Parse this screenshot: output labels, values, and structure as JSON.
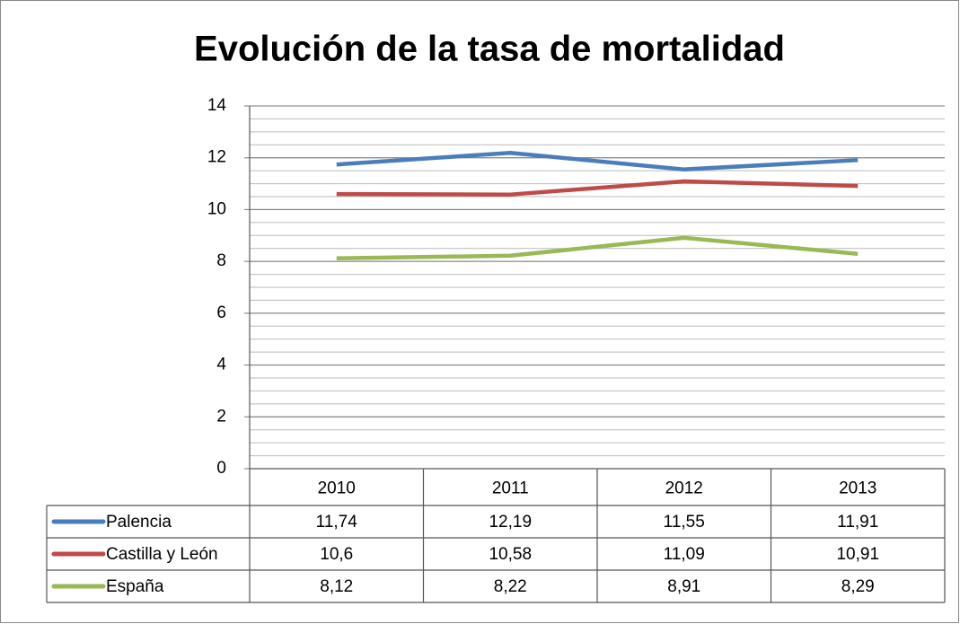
{
  "chart_data": {
    "type": "line",
    "title": "Evolución de la tasa de mortalidad",
    "categories": [
      "2010",
      "2011",
      "2012",
      "2013"
    ],
    "series": [
      {
        "name": "Palencia",
        "color": "#4a7ebb",
        "values": [
          11.74,
          12.19,
          11.55,
          11.91
        ],
        "value_labels": [
          "11,74",
          "12,19",
          "11,55",
          "11,91"
        ]
      },
      {
        "name": "Castilla y León",
        "color": "#be4b48",
        "values": [
          10.6,
          10.58,
          11.09,
          10.91
        ],
        "value_labels": [
          "10,6",
          "10,58",
          "11,09",
          "10,91"
        ]
      },
      {
        "name": "España",
        "color": "#98b954",
        "values": [
          8.12,
          8.22,
          8.91,
          8.29
        ],
        "value_labels": [
          "8,12",
          "8,22",
          "8,91",
          "8,29"
        ]
      }
    ],
    "ylim": [
      0,
      14
    ],
    "yticks": [
      0,
      2,
      4,
      6,
      8,
      10,
      12,
      14
    ],
    "grid": true,
    "minor_grid_step": 0.5,
    "legend": "table"
  }
}
